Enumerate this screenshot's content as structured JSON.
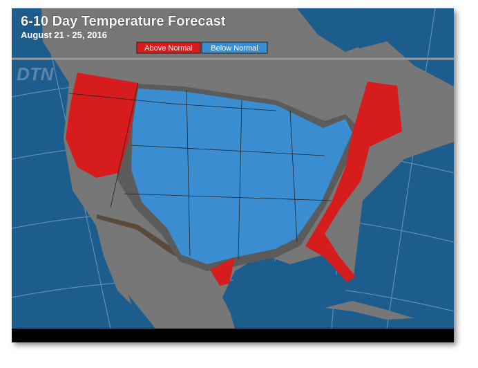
{
  "header": {
    "title": "6-10 Day Temperature Forecast",
    "subtitle": "August 21 - 25, 2016"
  },
  "legend": {
    "items": [
      {
        "label": "Above Normal",
        "color": "#d61c1c"
      },
      {
        "label": "Below Normal",
        "color": "#3a8dd0"
      }
    ]
  },
  "logo": "DTN"
}
